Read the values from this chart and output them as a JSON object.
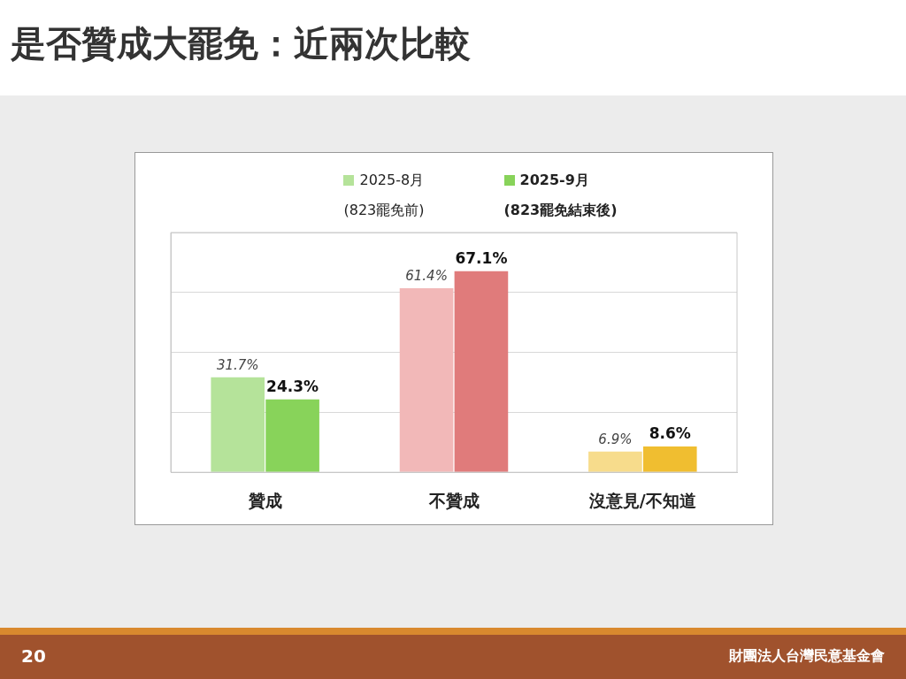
{
  "chart_data": {
    "type": "bar",
    "title": "是否贊成大罷免：近兩次比較",
    "categories": [
      "贊成",
      "不贊成",
      "沒意見/不知道"
    ],
    "series": [
      {
        "name": "2025-8月\n(823罷免前)",
        "color": "#b5e39a",
        "colors": [
          "#b5e39a",
          "#f2b8b8",
          "#f7dc8c"
        ],
        "values": [
          31.7,
          61.4,
          6.9
        ],
        "value_labels": [
          "31.7%",
          "61.4%",
          "6.9%"
        ]
      },
      {
        "name": "2025-9月\n(823罷免結束後)",
        "color": "#88d35a",
        "colors": [
          "#88d35a",
          "#e07b7b",
          "#f0be30"
        ],
        "values": [
          24.3,
          67.1,
          8.6
        ],
        "value_labels": [
          "24.3%",
          "67.1%",
          "8.6%"
        ]
      }
    ],
    "tick_labels": "x",
    "grid": "y",
    "legend": "top",
    "annotations": [
      "20",
      "財團法人台灣民意基金會"
    ]
  }
}
